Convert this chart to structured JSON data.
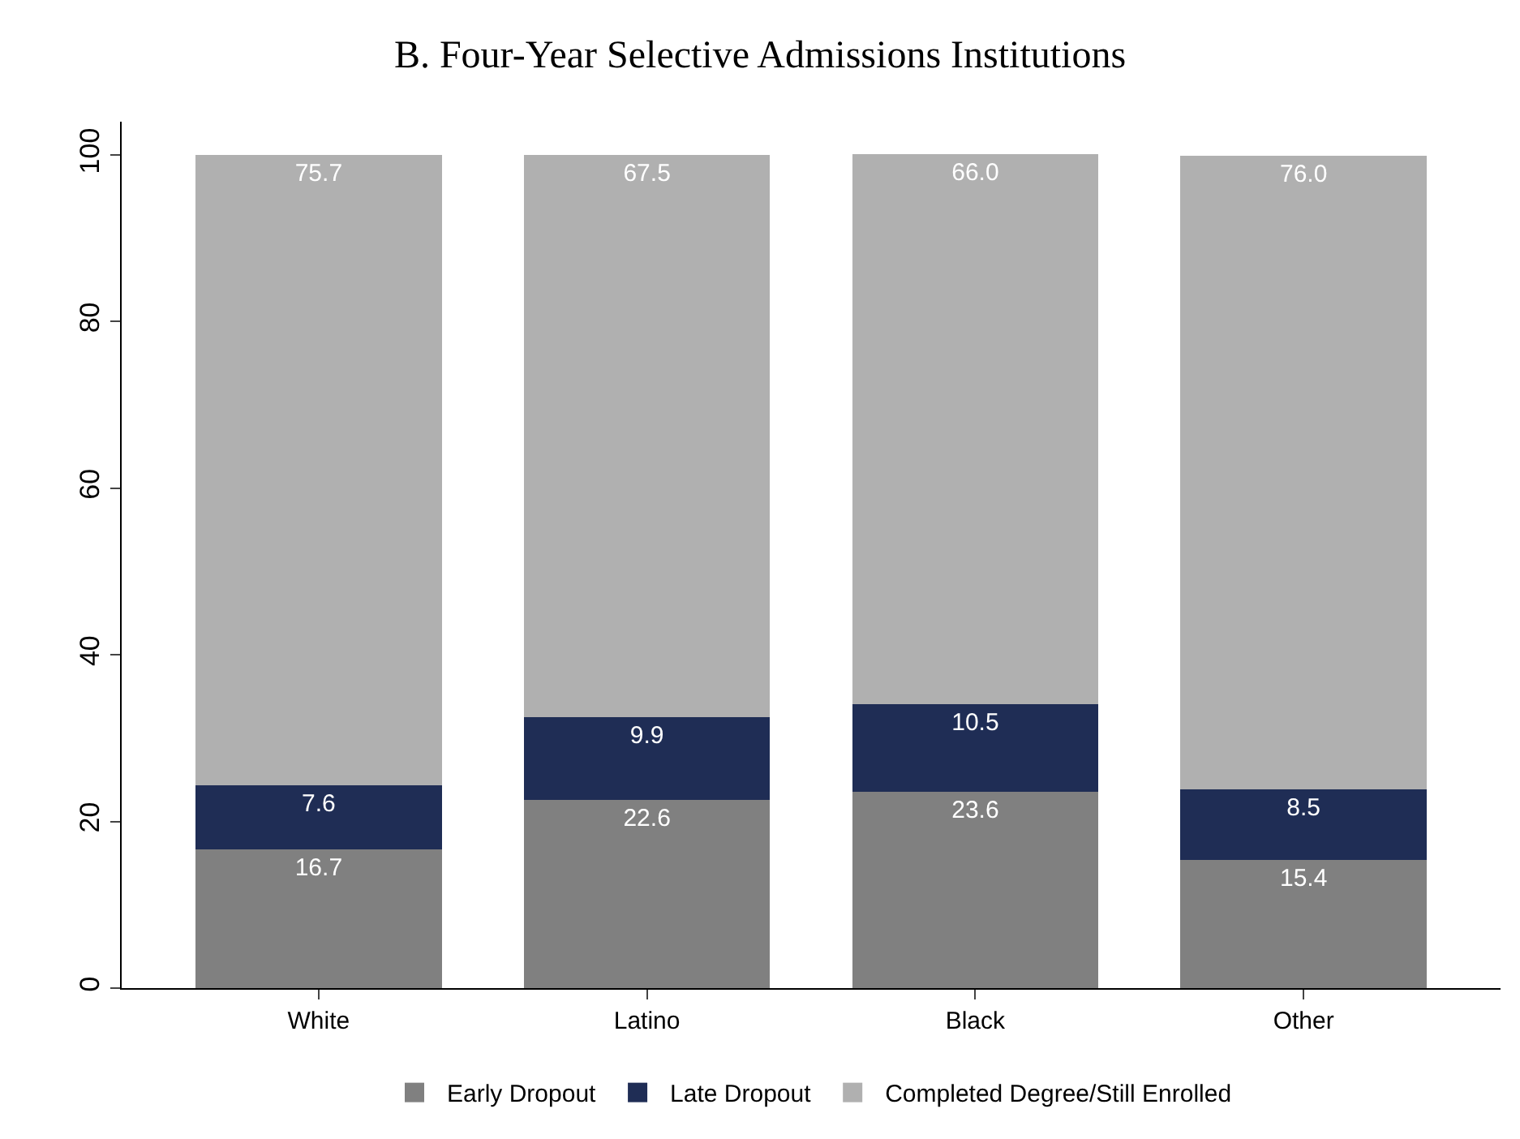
{
  "chart_data": {
    "type": "bar",
    "title": "B. Four-Year Selective Admissions Institutions",
    "categories": [
      "White",
      "Latino",
      "Black",
      "Other"
    ],
    "series": [
      {
        "name": "Early Dropout",
        "color": "#808080",
        "values": [
          16.7,
          22.6,
          23.6,
          15.4
        ],
        "value_labels": [
          "16.7",
          "22.6",
          "23.6",
          "15.4"
        ]
      },
      {
        "name": "Late Dropout",
        "color": "#1f2d55",
        "values": [
          7.6,
          9.9,
          10.5,
          8.5
        ],
        "value_labels": [
          "7.6",
          "9.9",
          "10.5",
          "8.5"
        ]
      },
      {
        "name": "Completed Degree/Still Enrolled",
        "color": "#b0b0b0",
        "values": [
          75.7,
          67.5,
          66.0,
          76.0
        ],
        "value_labels": [
          "75.7",
          "67.5",
          "66.0",
          "76.0"
        ]
      }
    ],
    "stacked": true,
    "ylim": [
      0,
      104
    ],
    "yticks": [
      0,
      20,
      40,
      60,
      80,
      100
    ],
    "legend": "bottom"
  }
}
